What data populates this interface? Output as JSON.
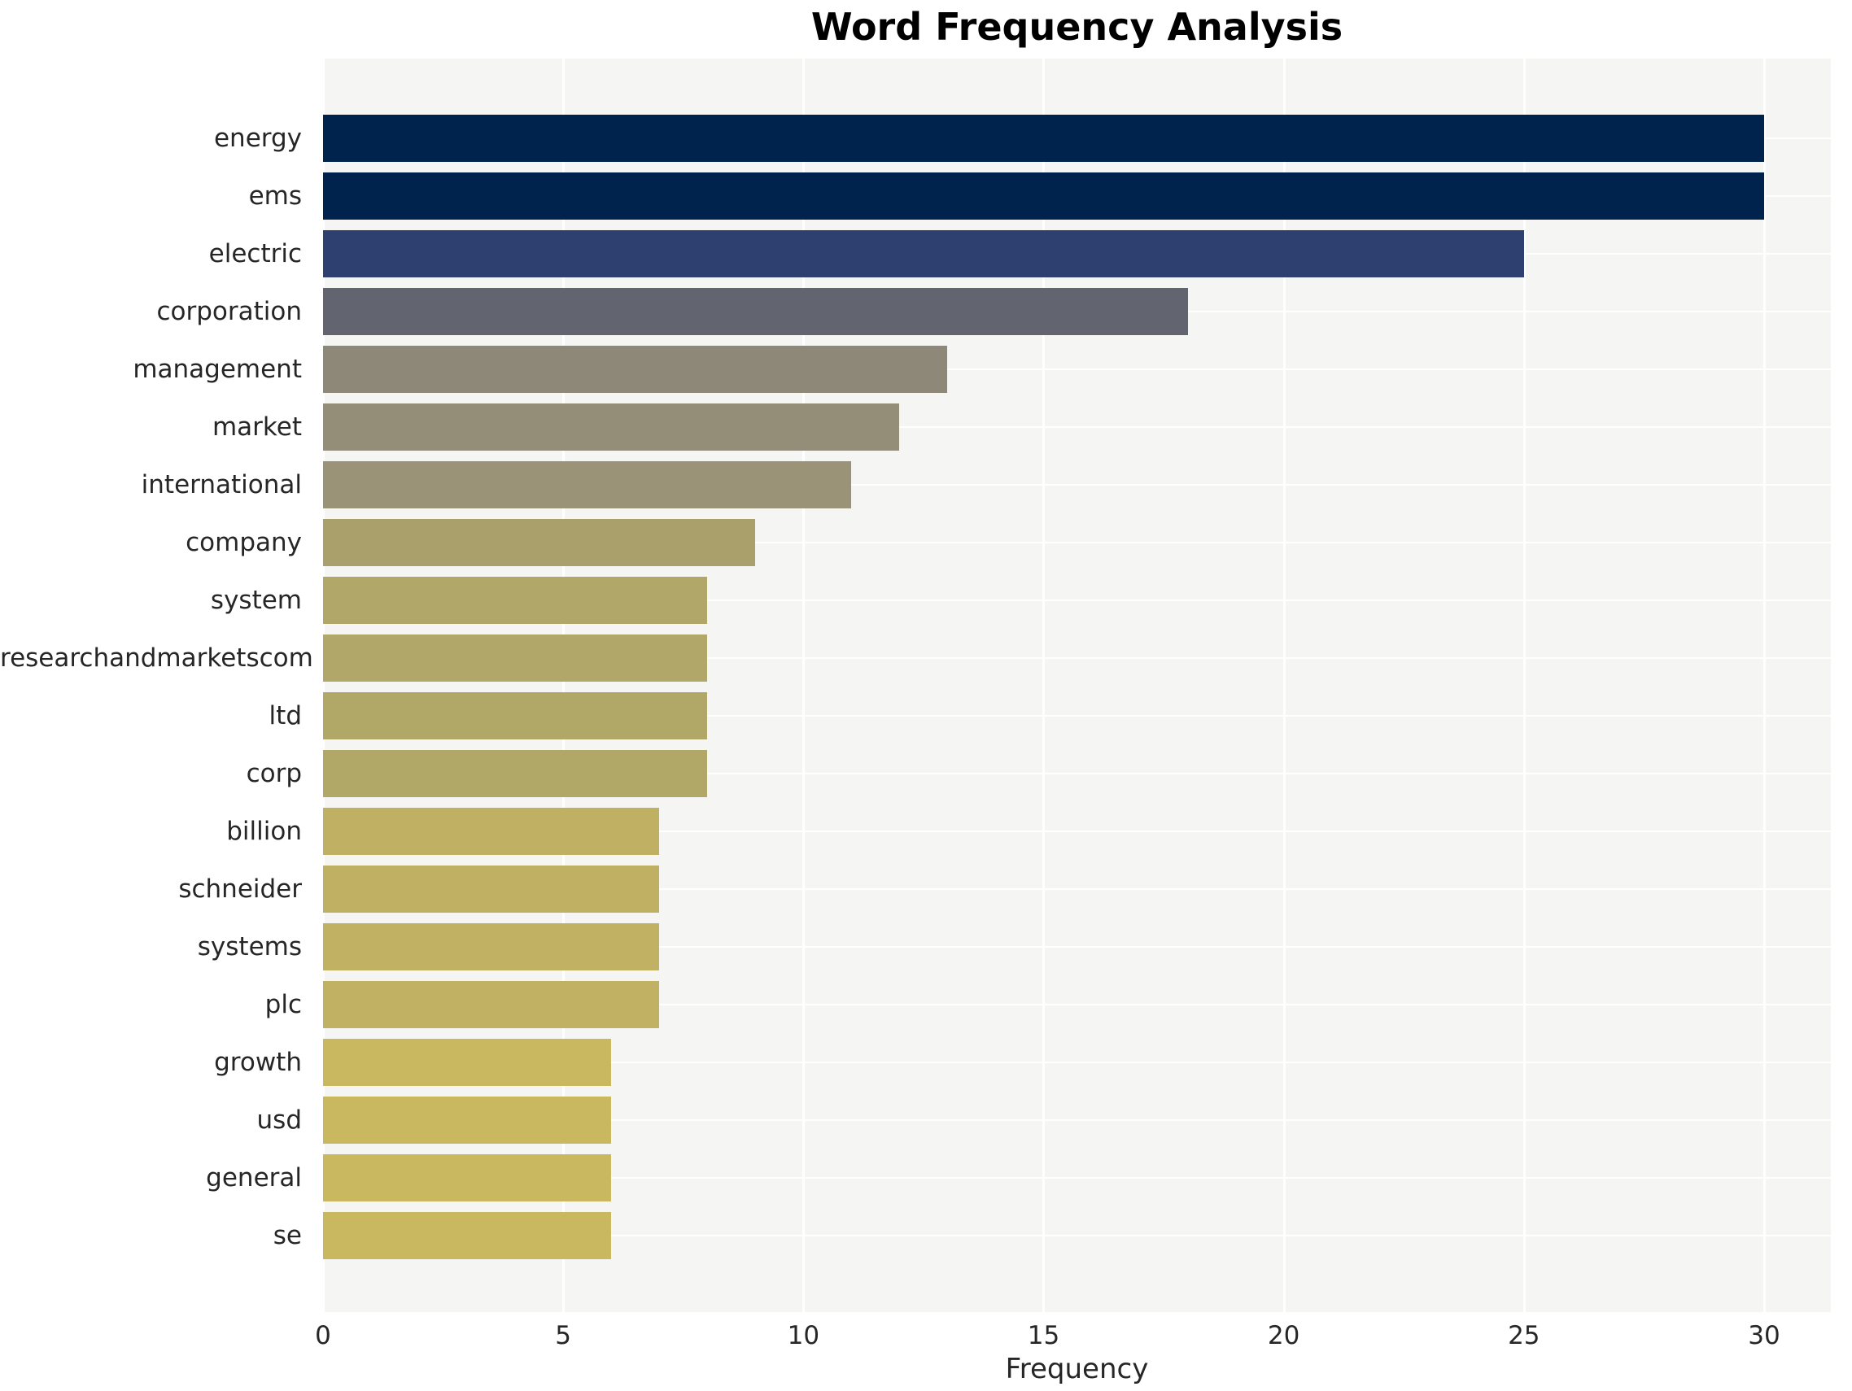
{
  "chart_data": {
    "type": "bar",
    "orientation": "horizontal",
    "title": "Word Frequency Analysis",
    "xlabel": "Frequency",
    "ylabel": "",
    "xlim": [
      0,
      31.4
    ],
    "xticks": [
      0,
      5,
      10,
      15,
      20,
      25,
      30
    ],
    "grid": true,
    "legend": false,
    "plot_bg_color": "#f5f5f3",
    "grid_color": "#ffffff",
    "categories": [
      "energy",
      "ems",
      "electric",
      "corporation",
      "management",
      "market",
      "international",
      "company",
      "system",
      "researchandmarketscom",
      "ltd",
      "corp",
      "billion",
      "schneider",
      "systems",
      "plc",
      "growth",
      "usd",
      "general",
      "se"
    ],
    "values": [
      30,
      30,
      25,
      18,
      13,
      12,
      11,
      9,
      8,
      8,
      8,
      8,
      7,
      7,
      7,
      7,
      6,
      6,
      6,
      6
    ],
    "bar_colors": [
      "#00234e",
      "#00234e",
      "#2e406f",
      "#626570",
      "#8d8878",
      "#948e79",
      "#9b9377",
      "#a9a06c",
      "#b0a768",
      "#b0a768",
      "#b1a867",
      "#b1a867",
      "#bfb064",
      "#bfb064",
      "#c0b163",
      "#c0b163",
      "#c9b85f",
      "#c9b85f",
      "#c9b85f",
      "#c9b85f"
    ]
  }
}
